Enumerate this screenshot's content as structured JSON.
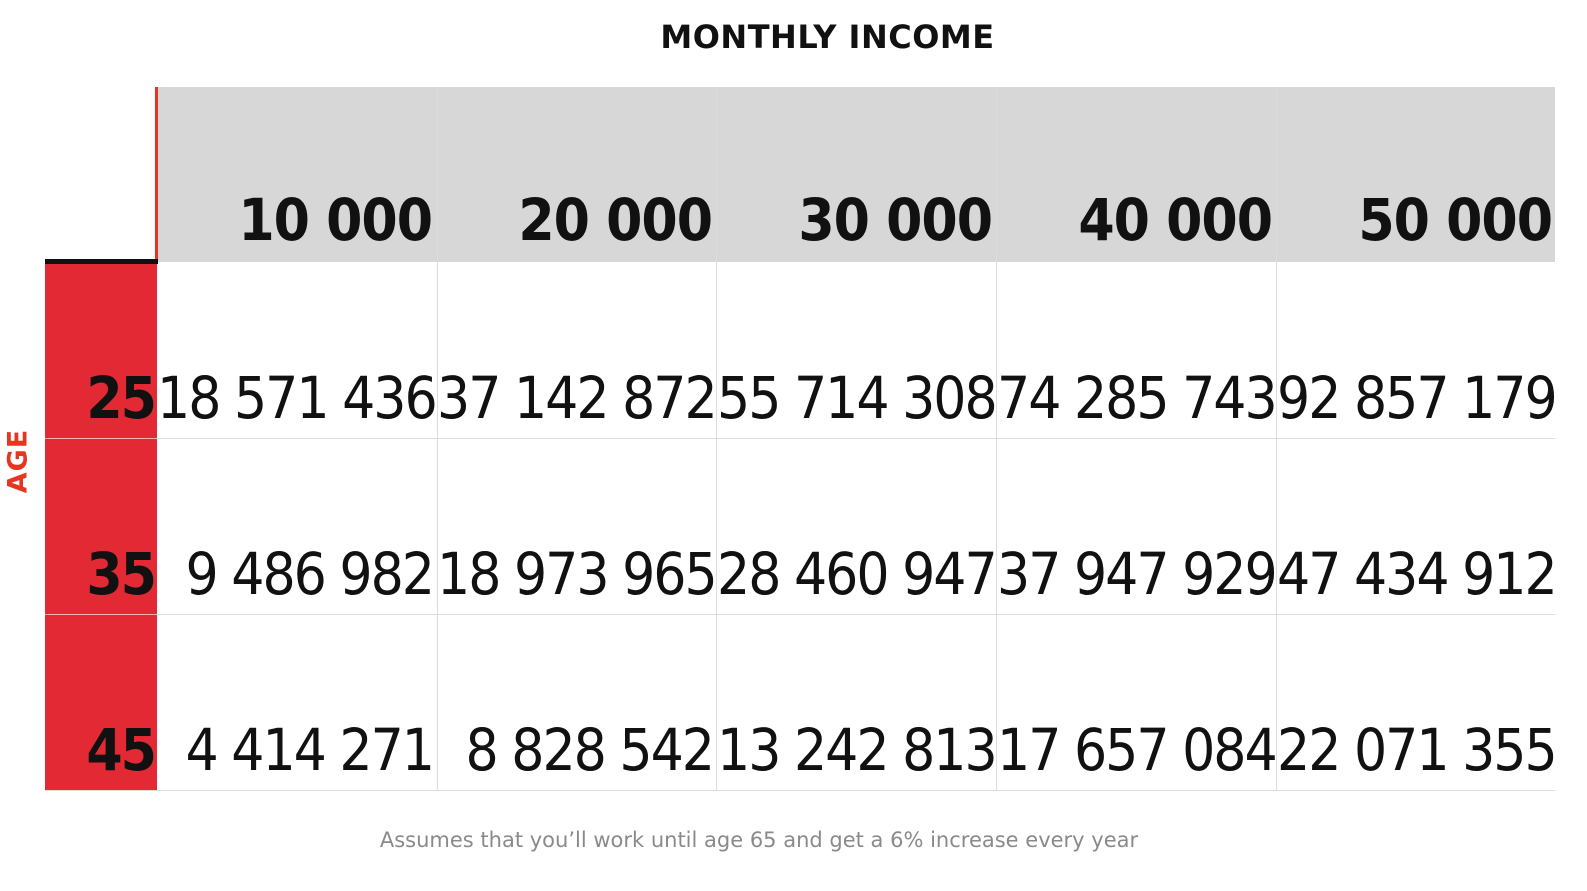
{
  "chart_data": {
    "type": "table",
    "title": "MONTHLY INCOME",
    "row_axis_label": "AGE",
    "columns": [
      "10 000",
      "20 000",
      "30 000",
      "40 000",
      "50 000"
    ],
    "rows": [
      "25",
      "35",
      "45"
    ],
    "cells": [
      [
        "18 571 436",
        "37 142 872",
        "55 714 308",
        "74 285 743",
        "92 857 179"
      ],
      [
        "9 486 982",
        "18 973 965",
        "28 460 947",
        "37 947 929",
        "47 434 912"
      ],
      [
        "4 414 271",
        "8 828 542",
        "13 242 813",
        "17 657 084",
        "22 071 355"
      ]
    ],
    "footnote": "Assumes that you’ll work until age 65 and get a 6% increase every year"
  },
  "colors": {
    "accent_red": "#e8351f",
    "row_band_red": "#e32934",
    "header_gray": "#d7d7d7",
    "text": "#111111",
    "footnote_gray": "#8a8a8a"
  }
}
